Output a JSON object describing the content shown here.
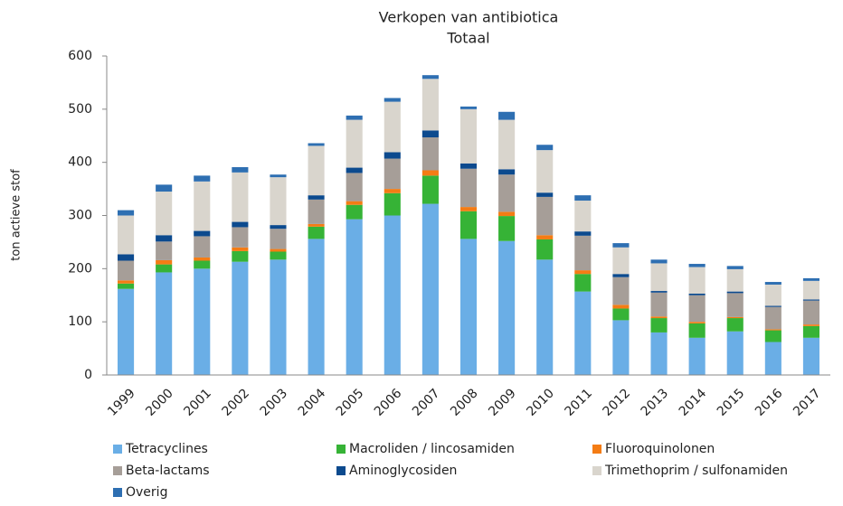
{
  "chart_data": {
    "type": "stacked_bar",
    "title": "Verkopen van antibiotica",
    "subtitle": "Totaal",
    "y_label": "ton actieve stof",
    "categories": [
      "1999",
      "2000",
      "2001",
      "2002",
      "2003",
      "2004",
      "2005",
      "2006",
      "2007",
      "2008",
      "2009",
      "2010",
      "2011",
      "2012",
      "2013",
      "2014",
      "2015",
      "2016",
      "2017"
    ],
    "series": [
      {
        "name": "Tetracyclines",
        "color": "#6aaee6",
        "values": [
          162,
          193,
          200,
          213,
          217,
          256,
          293,
          300,
          322,
          256,
          252,
          217,
          157,
          103,
          80,
          70,
          82,
          62,
          70
        ]
      },
      {
        "name": "Macroliden / lincosamiden",
        "color": "#36b336",
        "values": [
          10,
          15,
          15,
          20,
          15,
          23,
          27,
          42,
          53,
          52,
          47,
          38,
          33,
          22,
          27,
          27,
          25,
          22,
          22
        ]
      },
      {
        "name": "Fluoroquinolonen",
        "color": "#f47c14",
        "values": [
          6,
          8,
          6,
          7,
          5,
          5,
          7,
          8,
          10,
          8,
          8,
          8,
          7,
          7,
          3,
          3,
          2,
          2,
          3
        ]
      },
      {
        "name": "Beta-lactams",
        "color": "#a69e98",
        "values": [
          37,
          35,
          40,
          38,
          38,
          46,
          53,
          57,
          62,
          72,
          70,
          72,
          65,
          52,
          45,
          50,
          45,
          42,
          45
        ]
      },
      {
        "name": "Aminoglycosiden",
        "color": "#0c4a8e",
        "values": [
          12,
          12,
          10,
          10,
          7,
          8,
          10,
          12,
          13,
          10,
          10,
          8,
          8,
          6,
          3,
          3,
          3,
          2,
          2
        ]
      },
      {
        "name": "Trimethoprim / sulfonamiden",
        "color": "#d9d5cd",
        "values": [
          73,
          82,
          93,
          93,
          90,
          93,
          90,
          95,
          97,
          102,
          93,
          80,
          58,
          50,
          52,
          50,
          42,
          40,
          35
        ]
      },
      {
        "name": "Overig",
        "color": "#2e6fb2",
        "values": [
          10,
          13,
          11,
          10,
          5,
          5,
          8,
          7,
          7,
          5,
          15,
          10,
          10,
          8,
          7,
          6,
          6,
          5,
          5
        ]
      }
    ],
    "ylim": [
      0,
      600
    ],
    "yticks": [
      0,
      100,
      200,
      300,
      400,
      500,
      600
    ],
    "grid": false
  }
}
